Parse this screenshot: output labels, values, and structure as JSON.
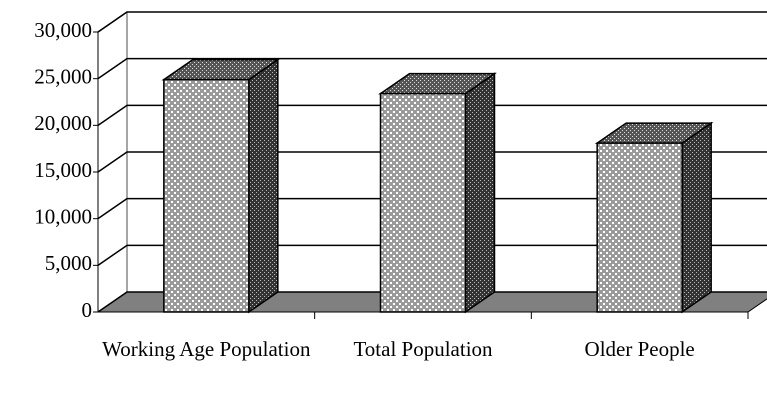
{
  "chart_data": {
    "type": "bar3d",
    "categories": [
      "Working Age Population",
      "Total Population",
      "Older People"
    ],
    "values": [
      24900,
      23400,
      18100
    ],
    "ylim": [
      0,
      30000
    ],
    "yticks": [
      0,
      {
        "value": 5000,
        "label": "5,000"
      },
      {
        "value": 10000,
        "label": "10,000"
      },
      {
        "value": 15000,
        "label": "15,000"
      },
      {
        "value": 20000,
        "label": "20,000"
      },
      {
        "value": 25000,
        "label": "25,000"
      },
      {
        "value": 30000,
        "label": "30,000"
      }
    ],
    "grid": true
  }
}
